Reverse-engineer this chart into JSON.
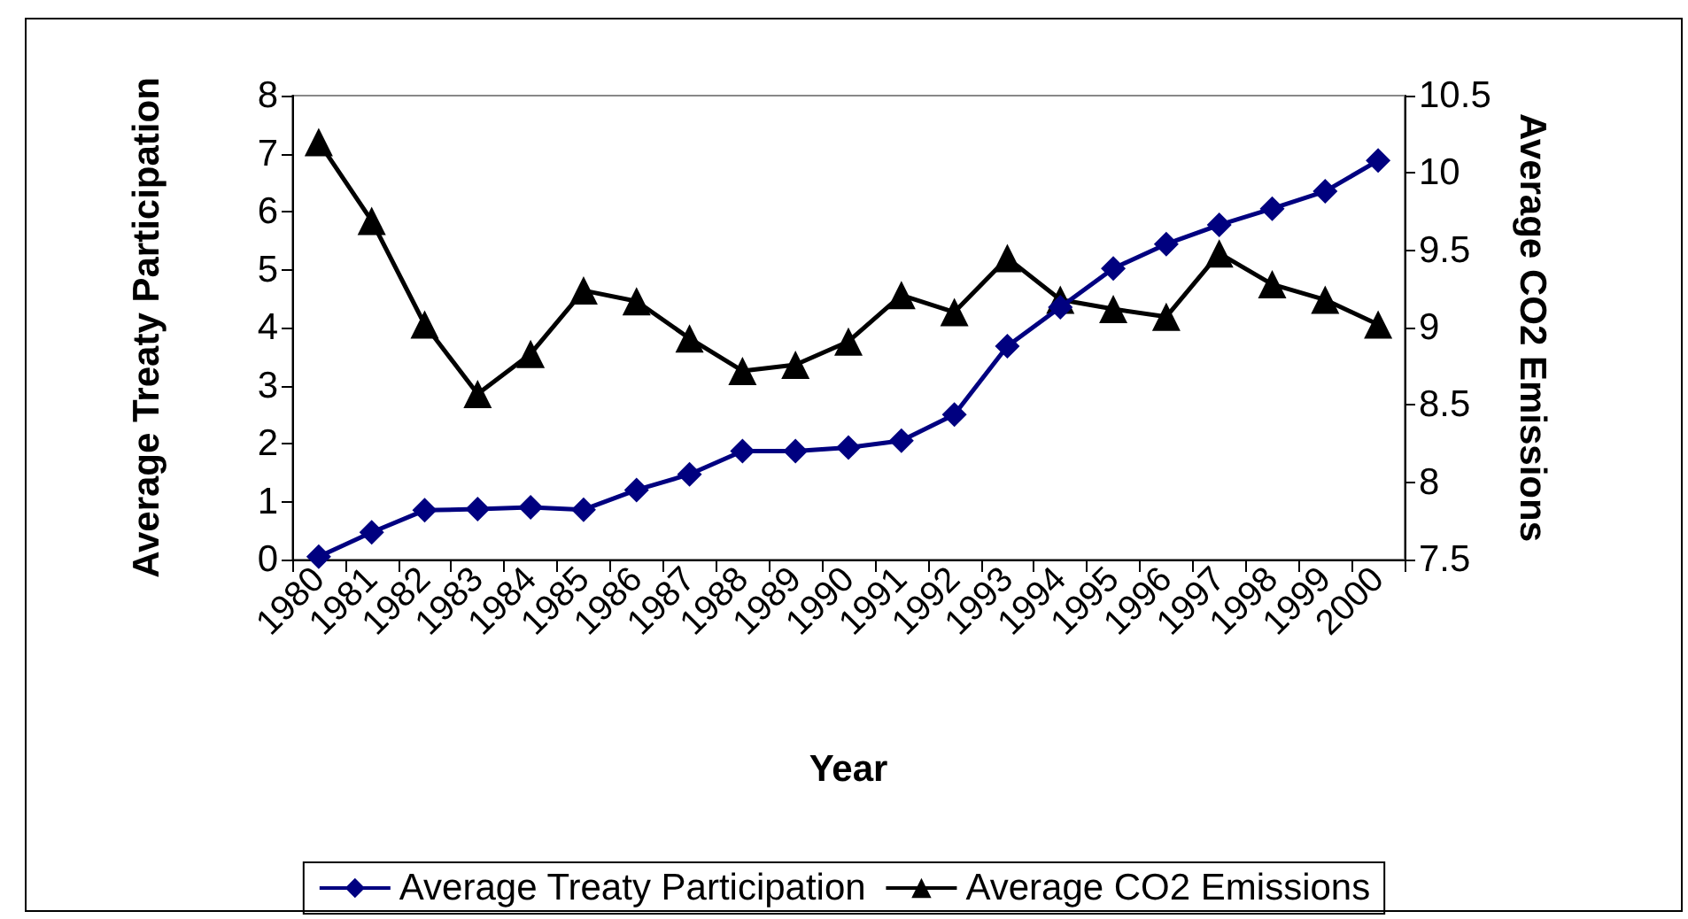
{
  "chart_data": {
    "type": "line",
    "xlabel": "Year",
    "ylabel": "Average Treaty Participation",
    "y2label": "Average CO2 Emissions",
    "categories": [
      "1980",
      "1981",
      "1982",
      "1983",
      "1984",
      "1985",
      "1986",
      "1987",
      "1988",
      "1989",
      "1990",
      "1991",
      "1992",
      "1993",
      "1994",
      "1995",
      "1996",
      "1997",
      "1998",
      "1999",
      "2000"
    ],
    "series": [
      {
        "name": "Average Treaty Participation",
        "color": "#000080",
        "marker": "diamond",
        "values": [
          0.05,
          0.47,
          0.85,
          0.87,
          0.9,
          0.86,
          1.2,
          1.47,
          1.87,
          1.87,
          1.93,
          2.05,
          2.5,
          3.68,
          4.35,
          5.02,
          5.44,
          5.77,
          6.05,
          6.35,
          6.88
        ]
      },
      {
        "name": "Average CO2 Emissions",
        "color": "#000000",
        "marker": "triangle",
        "axis": "y2",
        "values": [
          10.2,
          9.69,
          9.02,
          8.57,
          8.83,
          9.24,
          9.17,
          8.93,
          8.72,
          8.76,
          8.91,
          9.21,
          9.1,
          9.45,
          9.18,
          9.12,
          9.07,
          9.48,
          9.28,
          9.18,
          9.02
        ]
      }
    ],
    "ylim": [
      0,
      8
    ],
    "yticks": [
      0,
      1,
      2,
      3,
      4,
      5,
      6,
      7,
      8
    ],
    "y2lim": [
      7.5,
      10.5
    ],
    "y2ticks": [
      7.5,
      8,
      8.5,
      9,
      9.5,
      10,
      10.5
    ],
    "grid": false,
    "legend": "bottom",
    "line_style": "solid"
  }
}
